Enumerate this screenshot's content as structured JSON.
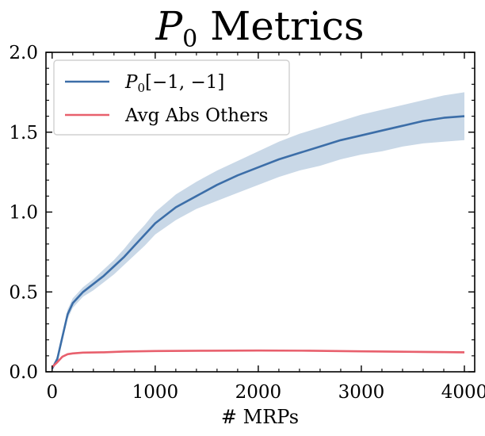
{
  "chart_data": {
    "type": "line",
    "title_main": "P",
    "title_sub": "0",
    "title_rest": " Metrics",
    "xlabel": "# MRPs",
    "ylabel": "",
    "xlim": [
      -60,
      4100
    ],
    "ylim": [
      0.0,
      2.0
    ],
    "xticks": [
      0,
      1000,
      2000,
      3000,
      4000
    ],
    "xtick_labels": [
      "0",
      "1000",
      "2000",
      "3000",
      "4000"
    ],
    "yticks": [
      0.0,
      0.5,
      1.0,
      1.5,
      2.0
    ],
    "ytick_labels": [
      "0.0",
      "0.5",
      "1.0",
      "1.5",
      "2.0"
    ],
    "grid": false,
    "legend_position": "top-left",
    "series": [
      {
        "name": "P0[−1, −1]",
        "legend_main": "P",
        "legend_sub": "0",
        "legend_rest": "[−1, −1]",
        "color": "#3c6ea8",
        "band_color": "#c6d6e6",
        "x": [
          0,
          50,
          100,
          150,
          200,
          300,
          400,
          500,
          600,
          700,
          800,
          900,
          1000,
          1200,
          1400,
          1600,
          1800,
          2000,
          2200,
          2400,
          2600,
          2800,
          3000,
          3200,
          3400,
          3600,
          3800,
          4000
        ],
        "y": [
          0.02,
          0.08,
          0.22,
          0.36,
          0.43,
          0.5,
          0.55,
          0.6,
          0.66,
          0.72,
          0.79,
          0.86,
          0.93,
          1.03,
          1.1,
          1.17,
          1.23,
          1.28,
          1.33,
          1.37,
          1.41,
          1.45,
          1.48,
          1.51,
          1.54,
          1.57,
          1.59,
          1.6
        ],
        "lower": [
          0.01,
          0.06,
          0.2,
          0.33,
          0.4,
          0.47,
          0.51,
          0.56,
          0.61,
          0.67,
          0.73,
          0.79,
          0.86,
          0.95,
          1.02,
          1.07,
          1.12,
          1.17,
          1.22,
          1.26,
          1.29,
          1.33,
          1.36,
          1.38,
          1.41,
          1.43,
          1.44,
          1.45
        ],
        "upper": [
          0.03,
          0.1,
          0.24,
          0.39,
          0.46,
          0.53,
          0.58,
          0.64,
          0.7,
          0.77,
          0.85,
          0.92,
          1.0,
          1.11,
          1.19,
          1.26,
          1.32,
          1.38,
          1.44,
          1.49,
          1.53,
          1.57,
          1.61,
          1.64,
          1.67,
          1.7,
          1.73,
          1.75
        ]
      },
      {
        "name": "Avg Abs Others",
        "legend_main": "Avg Abs Others",
        "legend_sub": "",
        "legend_rest": "",
        "color": "#e8606d",
        "band_color": "#f3bcc2",
        "x": [
          0,
          50,
          100,
          150,
          200,
          300,
          500,
          700,
          1000,
          1500,
          2000,
          2500,
          3000,
          3500,
          4000
        ],
        "y": [
          0.03,
          0.06,
          0.095,
          0.11,
          0.115,
          0.12,
          0.122,
          0.127,
          0.13,
          0.132,
          0.133,
          0.132,
          0.128,
          0.125,
          0.122
        ],
        "lower": [
          0.025,
          0.055,
          0.09,
          0.105,
          0.11,
          0.115,
          0.118,
          0.123,
          0.126,
          0.128,
          0.129,
          0.128,
          0.123,
          0.119,
          0.115
        ],
        "upper": [
          0.035,
          0.065,
          0.1,
          0.115,
          0.12,
          0.125,
          0.126,
          0.131,
          0.134,
          0.136,
          0.137,
          0.136,
          0.133,
          0.131,
          0.129
        ]
      }
    ]
  }
}
